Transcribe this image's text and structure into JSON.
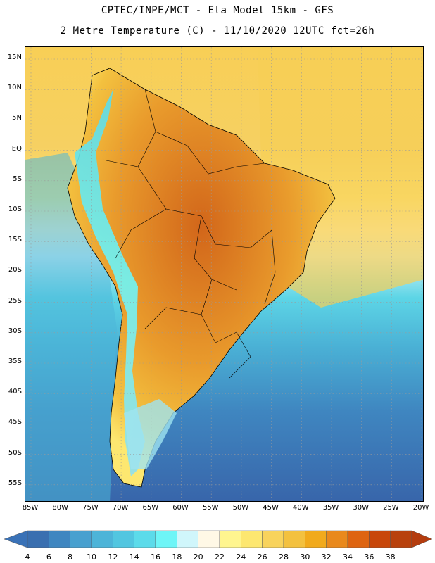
{
  "header": {
    "title_line1": "CPTEC/INPE/MCT -  Eta Model 15km - GFS",
    "title_line2": "2 Metre Temperature (C) - 11/10/2020 12UTC fct=26h"
  },
  "axes": {
    "lat_labels": [
      "15N",
      "10N",
      "5N",
      "EQ",
      "5S",
      "10S",
      "15S",
      "20S",
      "25S",
      "30S",
      "35S",
      "40S",
      "45S",
      "50S",
      "55S"
    ],
    "lon_labels": [
      "85W",
      "80W",
      "75W",
      "70W",
      "65W",
      "60W",
      "55W",
      "50W",
      "45W",
      "40W",
      "35W",
      "30W",
      "25W",
      "20W"
    ]
  },
  "colorbar": {
    "labels": [
      "4",
      "6",
      "8",
      "10",
      "12",
      "14",
      "16",
      "18",
      "20",
      "22",
      "24",
      "26",
      "28",
      "30",
      "32",
      "34",
      "36",
      "38"
    ],
    "colors": [
      "#3a6fb0",
      "#3f86c0",
      "#48a0cf",
      "#4db4d8",
      "#52c6e0",
      "#5cdbea",
      "#6ef5f7",
      "#d0f6fb",
      "#fff8e6",
      "#fff58f",
      "#fde770",
      "#f8d35c",
      "#f3c13f",
      "#f1aa1c",
      "#e9891c",
      "#de6411",
      "#c8470a",
      "#b8410d"
    ],
    "min_color": "#3a72b7",
    "max_color": "#b43c0e"
  },
  "map": {
    "ocean_north_color": "#f8cf56",
    "ocean_south_color": "#3865aa",
    "land_color": "#e99b2c",
    "land_hot_color": "#d2661a"
  }
}
